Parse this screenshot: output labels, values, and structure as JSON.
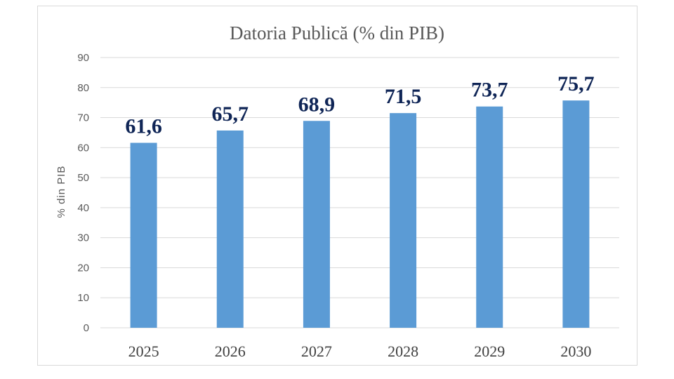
{
  "chart_data": {
    "type": "bar",
    "title": "Datoria Publică (% din PIB)",
    "ylabel": "% din PIB",
    "xlabel": "",
    "categories": [
      "2025",
      "2026",
      "2027",
      "2028",
      "2029",
      "2030"
    ],
    "values": [
      61.6,
      65.7,
      68.9,
      71.5,
      73.7,
      75.7
    ],
    "data_labels": [
      "61,6",
      "65,7",
      "68,9",
      "71,5",
      "73,7",
      "75,7"
    ],
    "ylim": [
      0,
      90
    ],
    "yticks": [
      "0",
      "10",
      "20",
      "30",
      "40",
      "50",
      "60",
      "70",
      "80",
      "90"
    ],
    "grid": true,
    "legend": "none",
    "colors": {
      "bar": "#5b9bd5",
      "data_label": "#0f2556",
      "grid": "#d9d9d9"
    }
  }
}
